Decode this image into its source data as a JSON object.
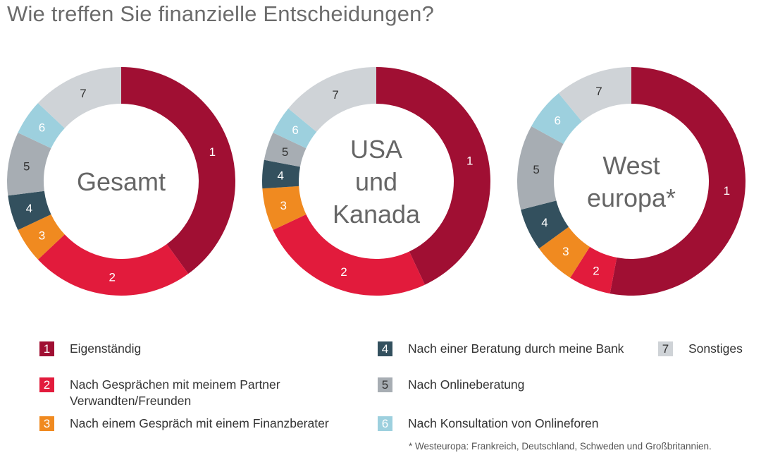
{
  "title": "Wie treffen Sie finanzielle Entscheidungen?",
  "chart_data": {
    "type": "donut",
    "title": "Wie treffen Sie finanzielle Entscheidungen?",
    "series_colors": [
      "#a00f33",
      "#e21b3c",
      "#f08a20",
      "#33505e",
      "#a7adb3",
      "#9dd0de",
      "#cfd3d7"
    ],
    "categories": [
      {
        "id": "1",
        "label": "Eigenständig"
      },
      {
        "id": "2",
        "label": "Nach Gesprächen mit meinem Partner Verwandten/Freunden"
      },
      {
        "id": "3",
        "label": "Nach einem Gespräch mit einem Finanzberater"
      },
      {
        "id": "4",
        "label": "Nach einer Beratung durch meine Bank"
      },
      {
        "id": "5",
        "label": "Nach Onlineberatung"
      },
      {
        "id": "6",
        "label": "Nach Konsultation von Onlineforen"
      },
      {
        "id": "7",
        "label": "Sonstiges"
      }
    ],
    "charts": [
      {
        "center_label": [
          "Gesamt"
        ],
        "values": [
          40,
          23,
          5,
          5,
          9,
          5,
          13
        ]
      },
      {
        "center_label": [
          "USA",
          "und",
          "Kanada"
        ],
        "values": [
          43,
          25,
          6,
          4,
          4,
          4,
          14
        ]
      },
      {
        "center_label": [
          "West",
          "europa*"
        ],
        "values": [
          53,
          6,
          6,
          6,
          12,
          6,
          11
        ]
      }
    ]
  },
  "legend": [
    {
      "id": "1",
      "lines": [
        "Eigenständig"
      ]
    },
    {
      "id": "2",
      "lines": [
        "Nach Gesprächen mit meinem Partner",
        "Verwandten/Freunden"
      ]
    },
    {
      "id": "3",
      "lines": [
        "Nach einem Gespräch mit einem Finanzberater"
      ]
    },
    {
      "id": "4",
      "lines": [
        "Nach einer Beratung durch meine Bank"
      ]
    },
    {
      "id": "5",
      "lines": [
        "Nach Onlineberatung"
      ]
    },
    {
      "id": "6",
      "lines": [
        "Nach Konsultation von Onlineforen"
      ]
    },
    {
      "id": "7",
      "lines": [
        "Sonstiges"
      ]
    }
  ],
  "footnote": "* Westeuropa: Frankreich, Deutschland, Schweden und Großbritannien."
}
